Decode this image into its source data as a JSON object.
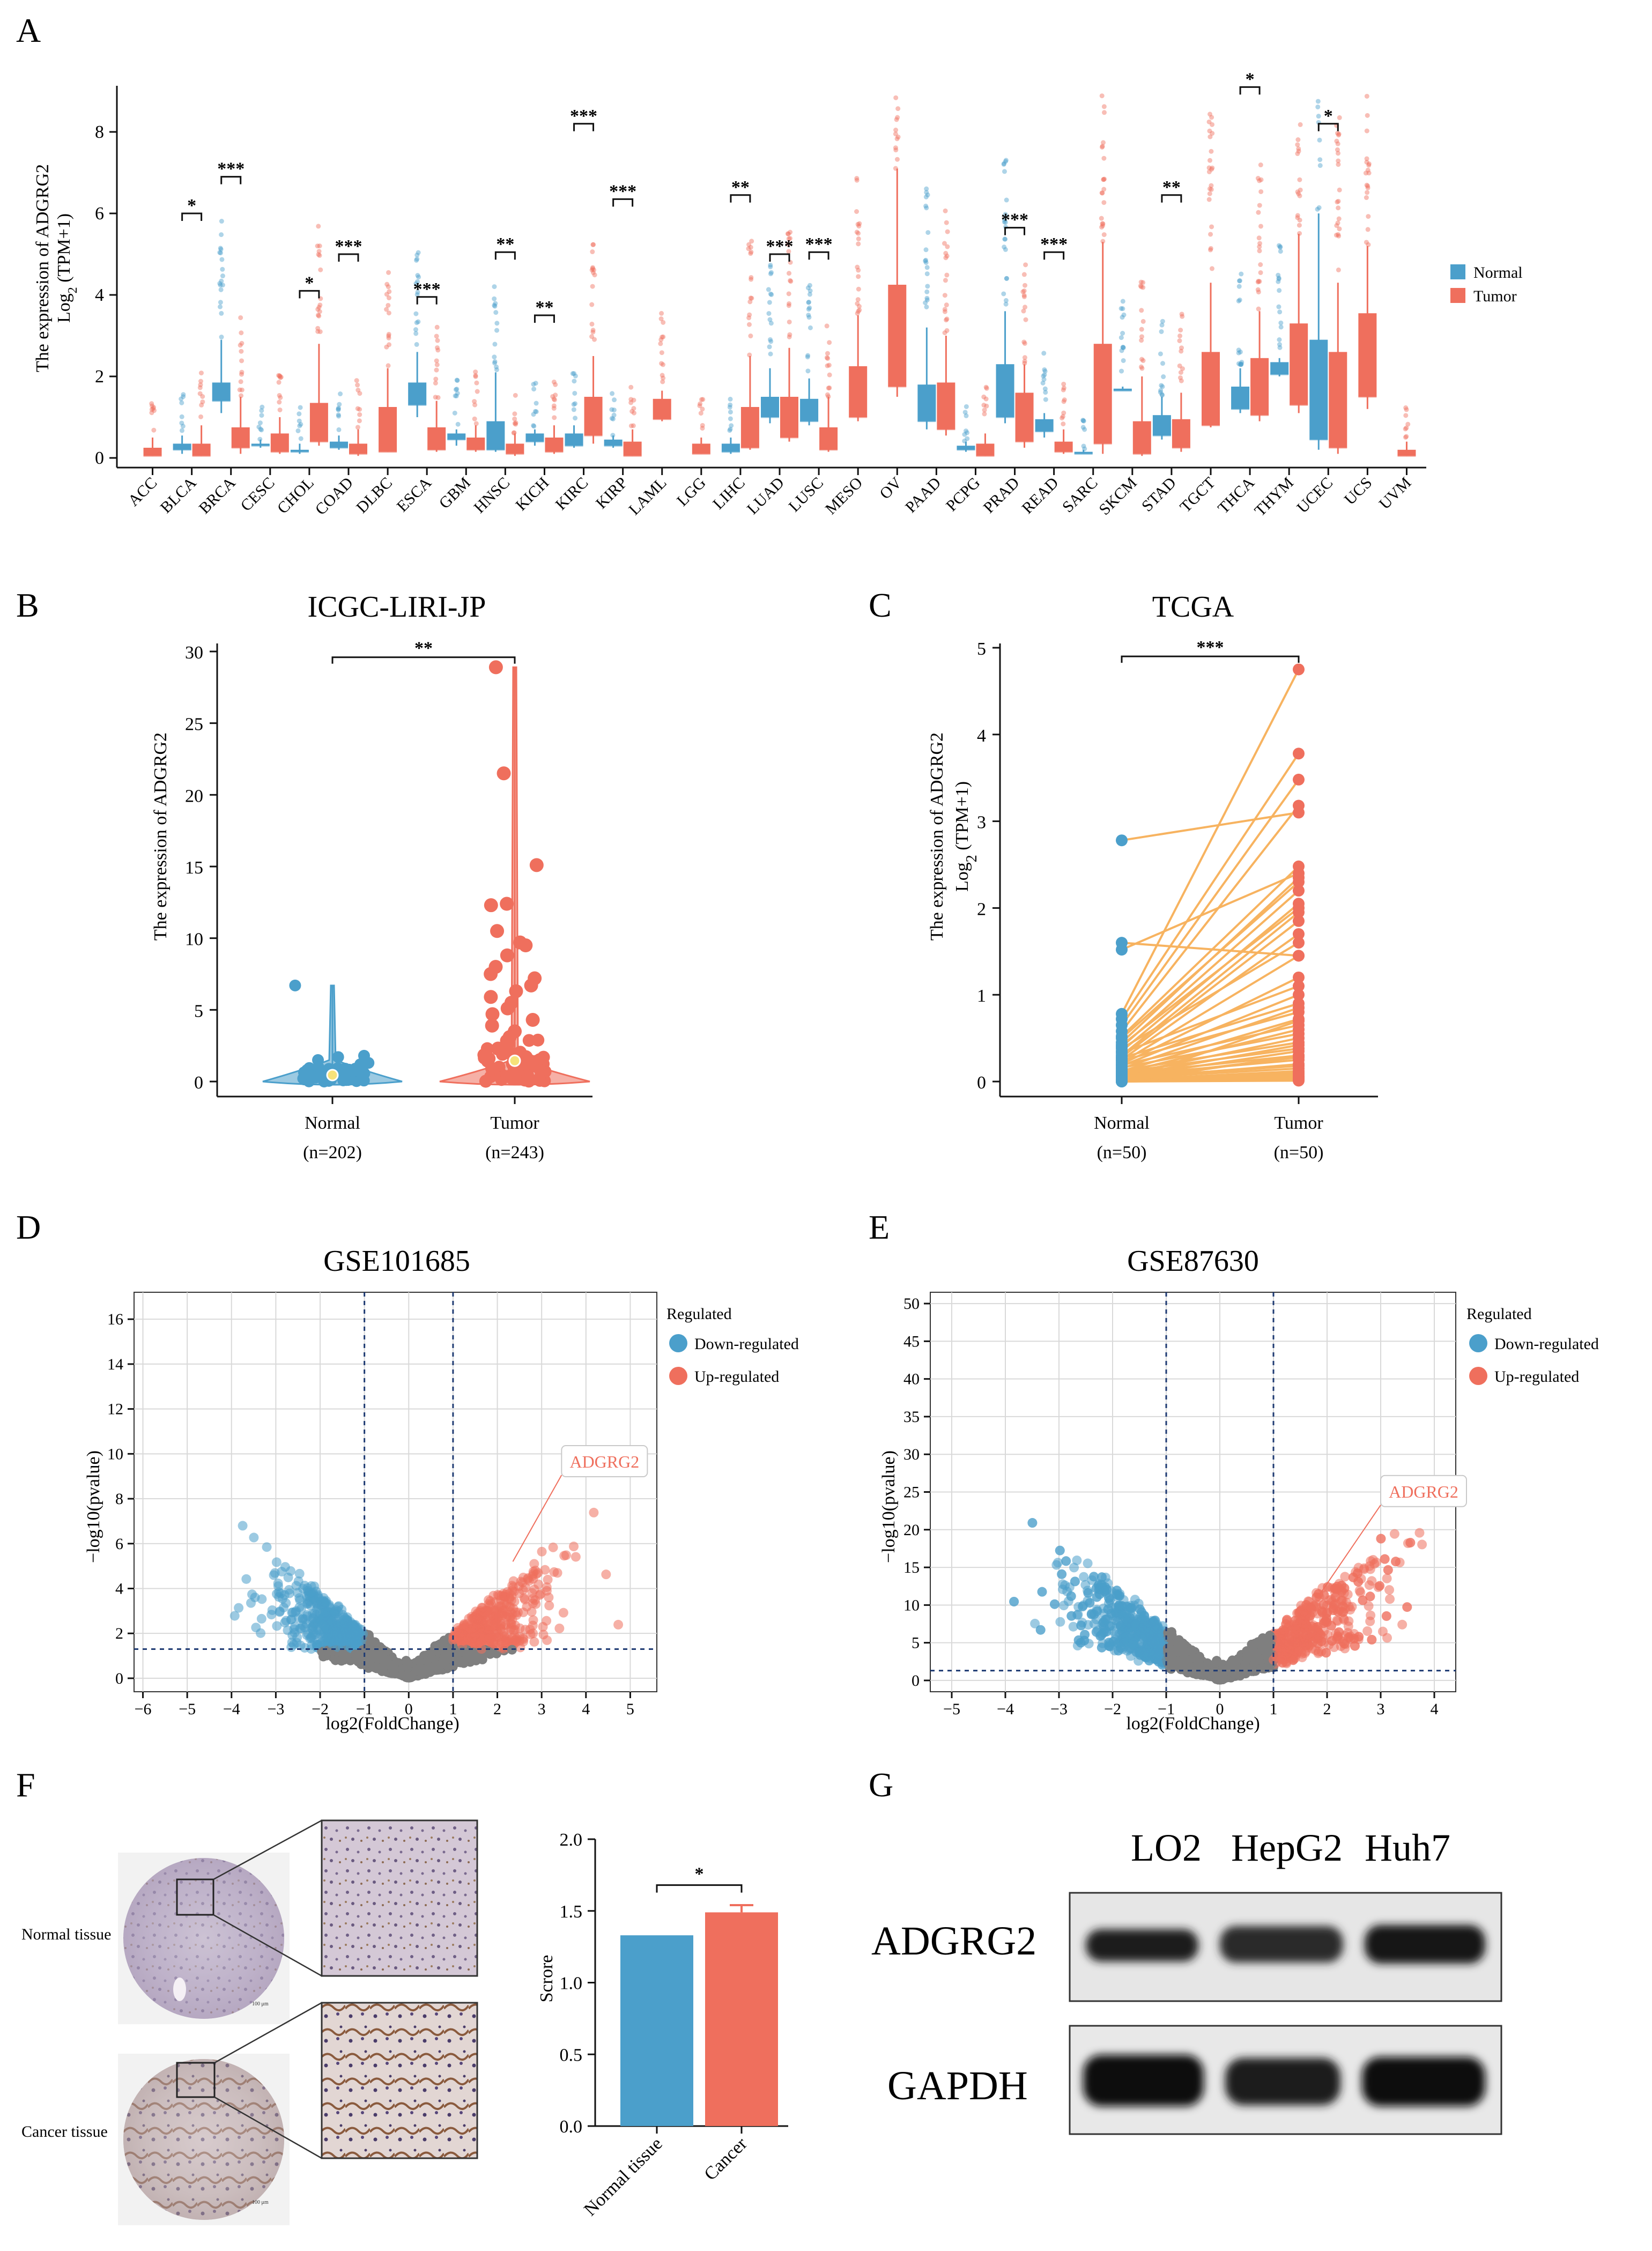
{
  "panels": {
    "A": "A",
    "B": "B",
    "C": "C",
    "D": "D",
    "E": "E",
    "F": "F",
    "G": "G"
  },
  "colors": {
    "normal": "#4b9fcb",
    "tumor": "#ef6f5d",
    "grey": "#7f7f7f",
    "line": "#f7b360"
  },
  "chart_data": [
    {
      "id": "A",
      "type": "box",
      "ylabel_line1": "The  expression   of ADGRG2",
      "ylabel_line2": "Log",
      "ylabel_sub": "2",
      "ylabel_tail": " (TPM+1)",
      "ylim": [
        0,
        9
      ],
      "yticks": [
        0,
        2,
        4,
        6,
        8
      ],
      "legend": [
        "Normal",
        "Tumor"
      ],
      "categories": [
        "ACC",
        "BLCA",
        "BRCA",
        "CESC",
        "CHOL",
        "COAD",
        "DLBC",
        "ESCA",
        "GBM",
        "HNSC",
        "KICH",
        "KIRC",
        "KIRP",
        "LAML",
        "LGG",
        "LIHC",
        "LUAD",
        "LUSC",
        "MESO",
        "OV",
        "PAAD",
        "PCPG",
        "PRAD",
        "READ",
        "SARC",
        "SKCM",
        "STAD",
        "TGCT",
        "THCA",
        "THYM",
        "UCEC",
        "UCS",
        "UVM"
      ],
      "normal": [
        null,
        [
          0.1,
          0.2,
          0.35,
          0.55
        ],
        [
          1.1,
          1.4,
          1.85,
          2.9
        ],
        [
          0.25,
          0.3,
          0.35,
          0.45
        ],
        [
          0.1,
          0.15,
          0.2,
          0.35
        ],
        [
          0.2,
          0.25,
          0.4,
          0.55
        ],
        null,
        [
          1.0,
          1.3,
          1.85,
          2.6
        ],
        [
          0.3,
          0.45,
          0.6,
          0.7
        ],
        [
          0.15,
          0.2,
          0.9,
          2.1
        ],
        [
          0.3,
          0.4,
          0.6,
          0.7
        ],
        [
          0.25,
          0.3,
          0.6,
          0.8
        ],
        [
          0.25,
          0.3,
          0.45,
          0.55
        ],
        null,
        null,
        [
          0.1,
          0.15,
          0.35,
          0.5
        ],
        [
          0.85,
          1.0,
          1.5,
          2.2
        ],
        [
          0.8,
          0.9,
          1.45,
          1.95
        ],
        null,
        null,
        [
          0.7,
          0.9,
          1.8,
          3.2
        ],
        [
          0.15,
          0.2,
          0.3,
          0.4
        ],
        [
          0.85,
          1.0,
          2.3,
          3.6
        ],
        [
          0.5,
          0.65,
          0.95,
          1.1
        ],
        [
          0.1,
          0.1,
          0.15,
          0.2
        ],
        [
          1.65,
          1.65,
          1.7,
          1.75
        ],
        [
          0.45,
          0.55,
          1.05,
          1.5
        ],
        null,
        [
          1.1,
          1.2,
          1.75,
          2.2
        ],
        [
          2.0,
          2.05,
          2.35,
          2.45
        ],
        [
          0.2,
          0.45,
          2.9,
          6.0
        ],
        null,
        null
      ],
      "tumor": [
        [
          0.05,
          0.05,
          0.25,
          0.5
        ],
        [
          0.05,
          0.05,
          0.35,
          0.8
        ],
        [
          0.1,
          0.25,
          0.75,
          1.5
        ],
        [
          0.1,
          0.15,
          0.6,
          1.0
        ],
        [
          0.3,
          0.4,
          1.35,
          2.8
        ],
        [
          0.05,
          0.1,
          0.35,
          0.7
        ],
        [
          0.15,
          0.15,
          1.25,
          2.2
        ],
        [
          0.15,
          0.2,
          0.75,
          1.4
        ],
        [
          0.15,
          0.2,
          0.5,
          0.8
        ],
        [
          0.05,
          0.1,
          0.35,
          0.6
        ],
        [
          0.1,
          0.15,
          0.5,
          0.8
        ],
        [
          0.35,
          0.55,
          1.5,
          2.5
        ],
        [
          0.05,
          0.05,
          0.4,
          0.7
        ],
        [
          0.9,
          0.95,
          1.45,
          1.65
        ],
        [
          0.1,
          0.1,
          0.35,
          0.5
        ],
        [
          0.2,
          0.25,
          1.25,
          2.5
        ],
        [
          0.4,
          0.5,
          1.5,
          2.7
        ],
        [
          0.15,
          0.2,
          0.75,
          1.5
        ],
        [
          0.9,
          1.0,
          2.25,
          3.5
        ],
        [
          1.5,
          1.75,
          4.25,
          7.1
        ],
        [
          0.55,
          0.7,
          1.85,
          3.0
        ],
        [
          0.05,
          0.05,
          0.35,
          0.6
        ],
        [
          0.25,
          0.4,
          1.6,
          2.3
        ],
        [
          0.1,
          0.15,
          0.4,
          0.7
        ],
        [
          0.1,
          0.35,
          2.8,
          5.3
        ],
        [
          0.05,
          0.1,
          0.9,
          2.0
        ],
        [
          0.15,
          0.25,
          0.95,
          1.6
        ],
        [
          0.75,
          0.8,
          2.6,
          4.3
        ],
        [
          0.9,
          1.05,
          2.45,
          3.6
        ],
        [
          1.1,
          1.3,
          3.3,
          5.5
        ],
        [
          0.1,
          0.25,
          2.6,
          4.3
        ],
        [
          1.2,
          1.5,
          3.55,
          5.2
        ],
        [
          0.05,
          0.05,
          0.2,
          0.4
        ]
      ],
      "significance": [
        {
          "index": 1,
          "label": "*"
        },
        {
          "index": 2,
          "label": "***"
        },
        {
          "index": 4,
          "label": "*"
        },
        {
          "index": 5,
          "label": "***"
        },
        {
          "index": 7,
          "label": "***"
        },
        {
          "index": 9,
          "label": "**"
        },
        {
          "index": 10,
          "label": "**"
        },
        {
          "index": 11,
          "label": "***"
        },
        {
          "index": 12,
          "label": "***"
        },
        {
          "index": 15,
          "label": "**"
        },
        {
          "index": 16,
          "label": "***"
        },
        {
          "index": 17,
          "label": "***"
        },
        {
          "index": 22,
          "label": "***"
        },
        {
          "index": 23,
          "label": "***"
        },
        {
          "index": 26,
          "label": "**"
        },
        {
          "index": 28,
          "label": "*"
        },
        {
          "index": 30,
          "label": "*"
        }
      ],
      "sig_heights": [
        6.0,
        6.9,
        4.1,
        5.0,
        3.95,
        5.05,
        3.5,
        8.2,
        6.35,
        6.45,
        5.0,
        5.05,
        5.65,
        5.05,
        6.45,
        9.1,
        8.2
      ]
    },
    {
      "id": "B",
      "type": "violin",
      "title": "ICGC-LIRI-JP",
      "ylabel": "The expression of ADGRG2",
      "ylim": [
        0,
        30
      ],
      "yticks": [
        0,
        5,
        10,
        15,
        20,
        25,
        30
      ],
      "categories": [
        "Normal",
        "Tumor"
      ],
      "counts": [
        "(n=202)",
        "(n=243)"
      ],
      "significance": "**",
      "medians": [
        0.45,
        1.45
      ],
      "outliers_normal": [
        6.7,
        1.8,
        1.5,
        1.3,
        1.2,
        1.0,
        0.9,
        0.8,
        0.7,
        0.6
      ],
      "outliers_tumor": [
        28.9,
        21.5,
        15.1,
        12.4,
        12.3,
        10.5,
        9.7,
        9.5,
        8.8,
        8.0,
        7.5,
        7.2,
        6.7,
        6.3,
        5.9,
        5.5,
        5.1,
        4.7,
        4.3,
        3.9,
        3.5,
        3.1,
        2.7,
        2.3,
        2.0,
        1.7,
        1.4
      ]
    },
    {
      "id": "C",
      "type": "paired",
      "title": "TCGA",
      "ylabel_line1": "The  expression   of ADGRG2",
      "ylabel_line2": "Log",
      "ylabel_sub": "2",
      "ylabel_tail": " (TPM+1)",
      "ylim": [
        0,
        5
      ],
      "yticks": [
        0,
        1,
        2,
        3,
        4,
        5
      ],
      "categories": [
        "Normal",
        "Tumor"
      ],
      "counts": [
        "(n=50)",
        "(n=50)"
      ],
      "significance": "***",
      "normal": [
        2.78,
        1.6,
        1.52,
        0.78,
        0.72,
        0.65,
        0.58,
        0.52,
        0.45,
        0.4,
        0.35,
        0.3,
        0.28,
        0.25,
        0.22,
        0.2,
        0.18,
        0.15,
        0.12,
        0.1,
        0.08,
        0.06,
        0.05,
        0.04,
        0.03,
        0.02,
        0.02,
        0.01,
        0.01,
        0.0,
        0.5,
        0.42,
        0.38,
        0.33,
        0.27,
        0.24,
        0.19,
        0.16,
        0.13,
        0.11,
        0.09,
        0.07,
        0.05,
        0.04,
        0.03,
        0.02,
        0.01,
        0.01,
        0.0,
        0.0
      ],
      "tumor": [
        3.1,
        1.45,
        2.4,
        4.75,
        3.78,
        3.48,
        3.18,
        2.48,
        2.35,
        2.2,
        2.05,
        1.95,
        1.85,
        1.7,
        1.45,
        1.2,
        1.0,
        0.85,
        0.72,
        0.6,
        0.5,
        0.42,
        0.35,
        0.28,
        0.2,
        0.12,
        0.05,
        0.02,
        0.7,
        0.3,
        2.3,
        2.0,
        1.6,
        1.1,
        0.9,
        0.8,
        0.65,
        0.55,
        0.45,
        0.38,
        0.3,
        0.25,
        0.18,
        0.15,
        0.1,
        0.08,
        0.06,
        0.04,
        0.03,
        0.01
      ]
    },
    {
      "id": "D",
      "type": "scatter",
      "title": "GSE101685",
      "xlabel": "log2(FoldChange)",
      "ylabel": "−log10(pvalue)",
      "xlim": [
        -6.2,
        5.6
      ],
      "ylim": [
        -0.6,
        17.2
      ],
      "xticks": [
        -6,
        -5,
        -4,
        -3,
        -2,
        -1,
        0,
        1,
        2,
        3,
        4,
        5
      ],
      "yticks": [
        0,
        2,
        4,
        6,
        8,
        10,
        12,
        14,
        16
      ],
      "fc_threshold": 1,
      "p_threshold": 1.3,
      "legend_title": "Regulated",
      "legend": [
        "Down-regulated",
        "Up-regulated"
      ],
      "annotation": "ADGRG2",
      "annotation_point": [
        2.35,
        5.2
      ]
    },
    {
      "id": "E",
      "type": "scatter",
      "title": "GSE87630",
      "xlabel": "log2(FoldChange)",
      "ylabel": "−log10(pvalue)",
      "xlim": [
        -5.4,
        4.4
      ],
      "ylim": [
        -1.5,
        51.5
      ],
      "xticks": [
        -5,
        -4,
        -3,
        -2,
        -1,
        0,
        1,
        2,
        3,
        4
      ],
      "yticks": [
        0,
        5,
        10,
        15,
        20,
        25,
        30,
        35,
        40,
        45,
        50
      ],
      "fc_threshold": 1,
      "p_threshold": 1.3,
      "legend_title": "Regulated",
      "legend": [
        "Down-regulated",
        "Up-regulated"
      ],
      "annotation": "ADGRG2",
      "annotation_point": [
        1.9,
        11.8
      ]
    },
    {
      "id": "F",
      "type": "bar",
      "ylabel": "Scrore",
      "ylim": [
        0,
        2.0
      ],
      "yticks": [
        "0.0",
        "0.5",
        "1.0",
        "1.5",
        "2.0"
      ],
      "categories": [
        "Normal tissue",
        "Cancer"
      ],
      "values": [
        1.33,
        1.49
      ],
      "errors": [
        0.0,
        0.05
      ],
      "significance": "*"
    }
  ],
  "ihc": {
    "normal_label": "Normal tissue",
    "cancer_label": "Cancer tissue",
    "scale_top": "100 μm",
    "scale_bottom": "100 μm"
  },
  "western": {
    "lanes": [
      "LO2",
      "HepG2",
      "Huh7"
    ],
    "rows": [
      "ADGRG2",
      "GAPDH"
    ]
  }
}
